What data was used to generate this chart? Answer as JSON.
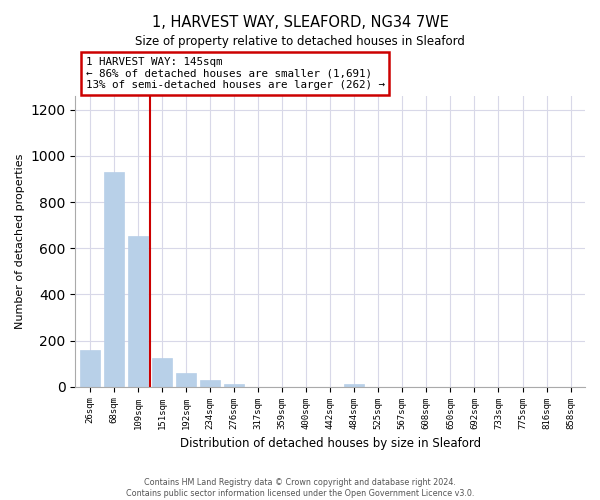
{
  "title": "1, HARVEST WAY, SLEAFORD, NG34 7WE",
  "subtitle": "Size of property relative to detached houses in Sleaford",
  "xlabel": "Distribution of detached houses by size in Sleaford",
  "ylabel": "Number of detached properties",
  "bar_labels": [
    "26sqm",
    "68sqm",
    "109sqm",
    "151sqm",
    "192sqm",
    "234sqm",
    "276sqm",
    "317sqm",
    "359sqm",
    "400sqm",
    "442sqm",
    "484sqm",
    "525sqm",
    "567sqm",
    "608sqm",
    "650sqm",
    "692sqm",
    "733sqm",
    "775sqm",
    "816sqm",
    "858sqm"
  ],
  "bar_values": [
    160,
    930,
    655,
    125,
    60,
    28,
    10,
    0,
    0,
    0,
    0,
    13,
    0,
    0,
    0,
    0,
    0,
    0,
    0,
    0,
    0
  ],
  "bar_color": "#b8d0e8",
  "vline_position": 2.5,
  "annotation_title": "1 HARVEST WAY: 145sqm",
  "annotation_line1": "← 86% of detached houses are smaller (1,691)",
  "annotation_line2": "13% of semi-detached houses are larger (262) →",
  "annotation_box_color": "#ffffff",
  "annotation_box_edge": "#cc0000",
  "vline_color": "#cc0000",
  "ylim": [
    0,
    1260
  ],
  "yticks": [
    0,
    200,
    400,
    600,
    800,
    1000,
    1200
  ],
  "footer1": "Contains HM Land Registry data © Crown copyright and database right 2024.",
  "footer2": "Contains public sector information licensed under the Open Government Licence v3.0.",
  "background_color": "#ffffff",
  "grid_color": "#d8d8e8"
}
